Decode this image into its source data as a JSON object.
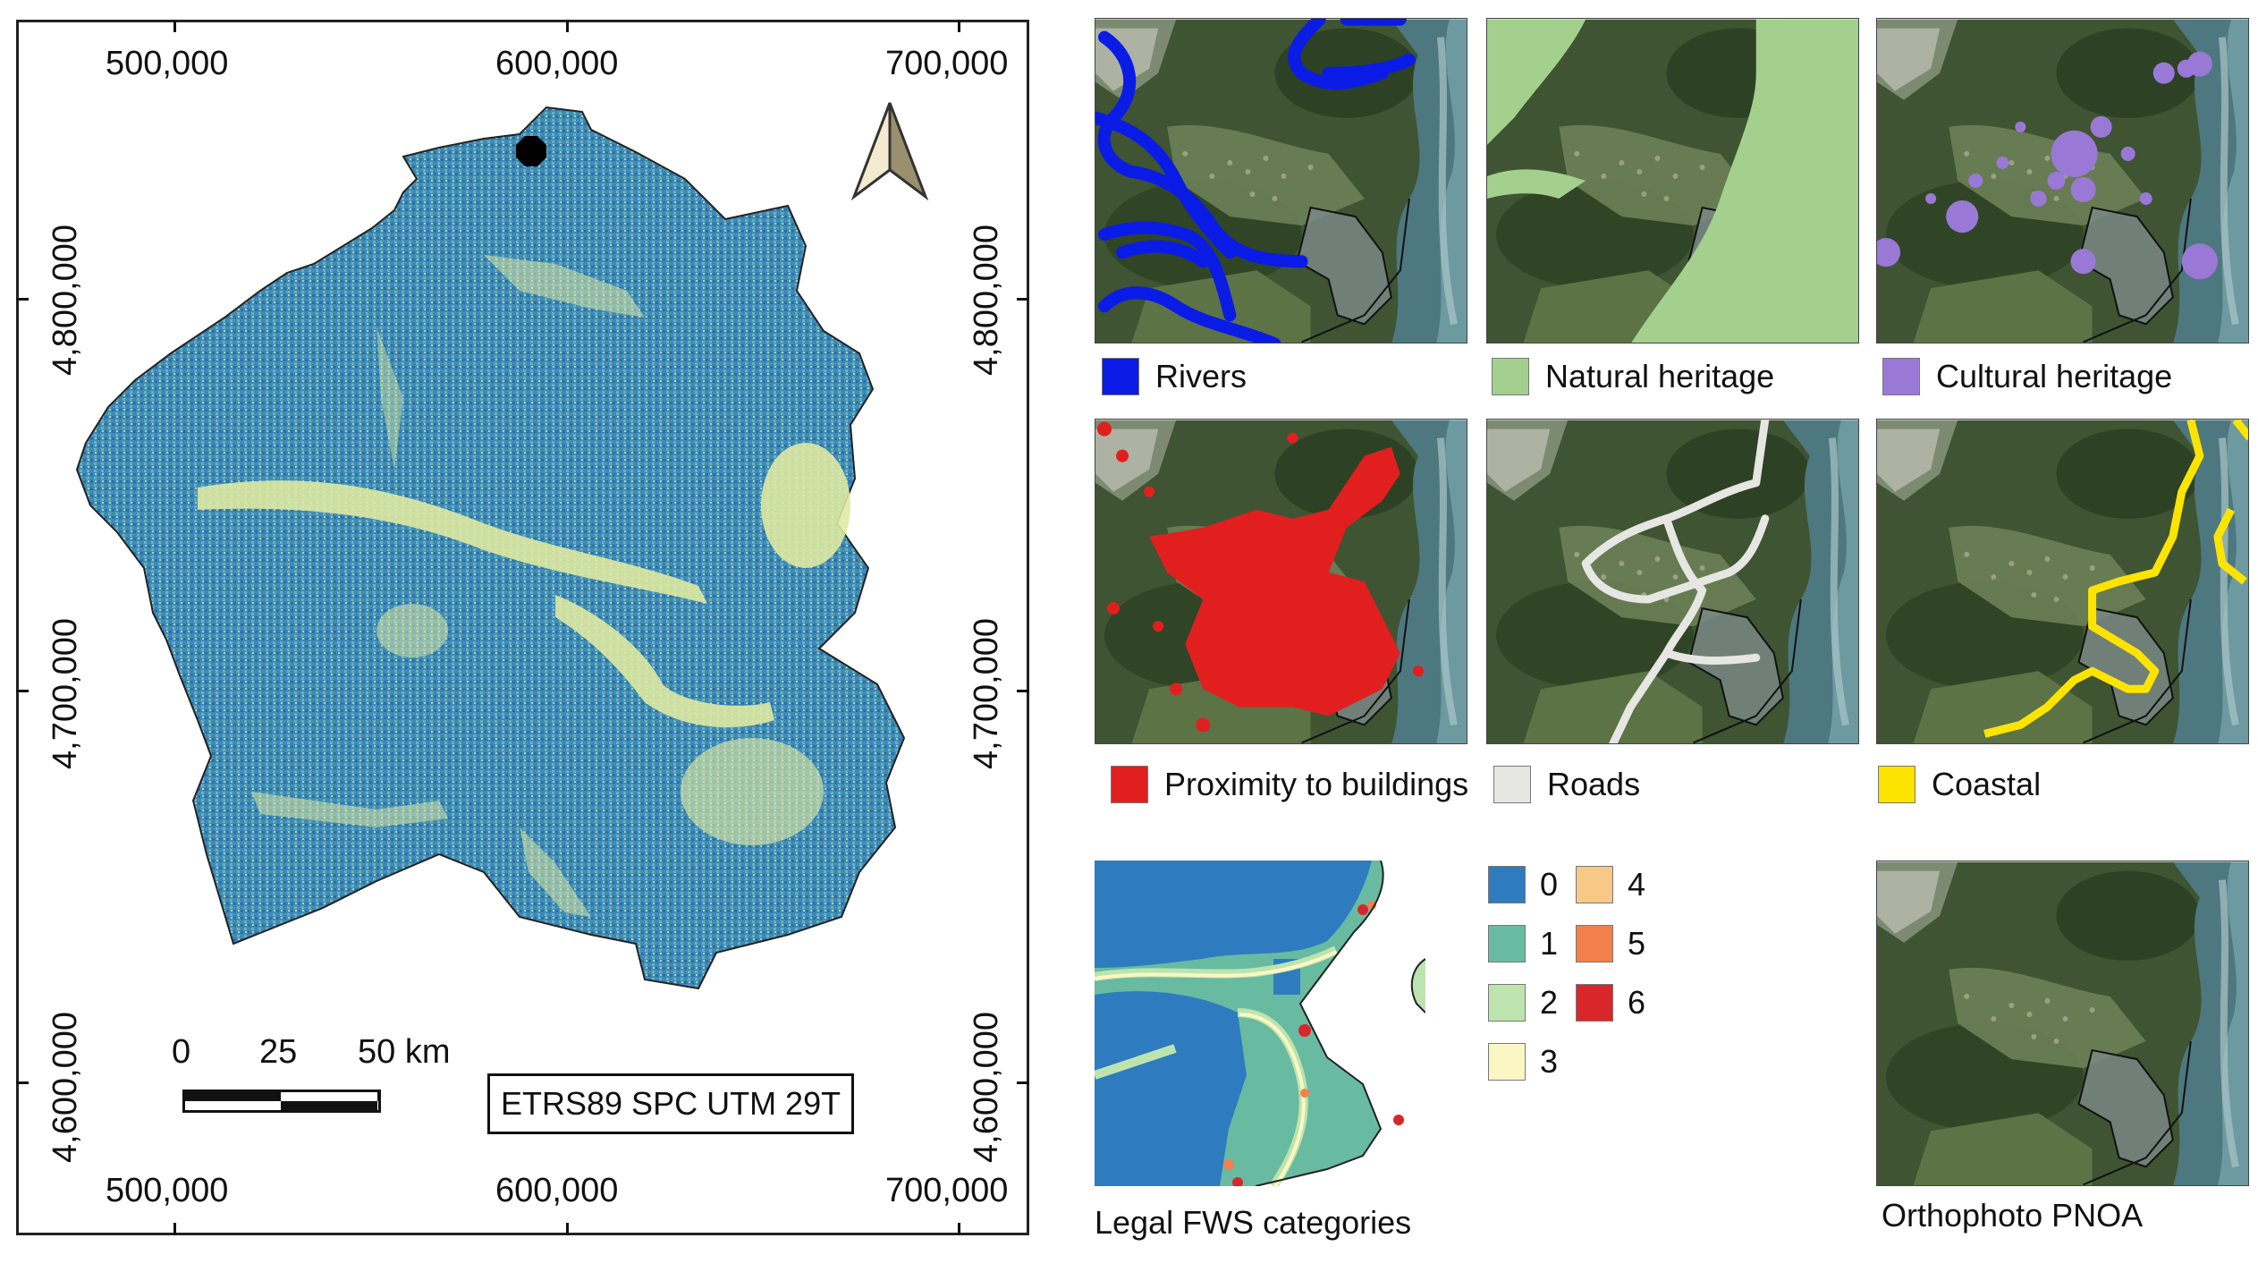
{
  "main_map": {
    "x_coords": [
      "500,000",
      "600,000",
      "700,000"
    ],
    "y_coords": [
      "4,800,000",
      "4,700,000",
      "4,600,000"
    ],
    "scale": {
      "ticks": [
        "0",
        "25",
        "50 km"
      ]
    },
    "crs_label": "ETRS89 SPC UTM 29T",
    "north_arrow": "north-arrow-icon",
    "colors": {
      "fill_blue": "#2b7bb6",
      "fill_teal": "#5fa7b8",
      "fill_yellow": "#e9efa6",
      "outline": "#222222"
    }
  },
  "panels": [
    {
      "label": "Rivers",
      "swatch": "#0a1be6"
    },
    {
      "label": "Natural heritage",
      "swatch": "#a3d08c"
    },
    {
      "label": "Cultural heritage",
      "swatch": "#9a78d6"
    },
    {
      "label": "Proximity to buildings",
      "swatch": "#e11f1f"
    },
    {
      "label": "Roads",
      "swatch": "#e6e6e2"
    },
    {
      "label": "Coastal",
      "swatch": "#fde400"
    },
    {
      "label": "Legal FWS categories"
    },
    {
      "label": "Orthophoto PNOA"
    }
  ],
  "fws_legend": [
    {
      "value": "0",
      "color": "#2e7cbf"
    },
    {
      "value": "1",
      "color": "#68bba0"
    },
    {
      "value": "2",
      "color": "#bde4ae"
    },
    {
      "value": "3",
      "color": "#fbf7c4"
    },
    {
      "value": "4",
      "color": "#f8c886"
    },
    {
      "value": "5",
      "color": "#f3804a"
    },
    {
      "value": "6",
      "color": "#d8262b"
    }
  ]
}
